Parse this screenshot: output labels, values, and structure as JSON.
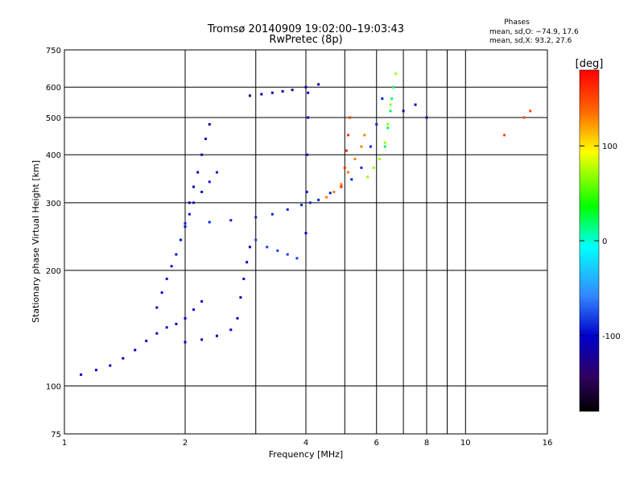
{
  "chart_data": {
    "type": "scatter",
    "title": "Tromsø 20140909 19:02:00–19:03:43",
    "subtitle": "RwPretec (8p)",
    "xlabel": "Frequency [MHz]",
    "ylabel": "Stationary phase Virtual Height [km]",
    "x_scale": "log",
    "y_scale": "log",
    "xlim": [
      1,
      16
    ],
    "ylim": [
      75,
      750
    ],
    "x_ticks": [
      1,
      2,
      4,
      6,
      8,
      10,
      16
    ],
    "x_tick_labels": [
      "1",
      "2",
      "4",
      "6",
      "8",
      "10",
      "16"
    ],
    "x_minor_ticks": [
      3,
      5,
      7,
      9
    ],
    "y_ticks": [
      75,
      100,
      200,
      300,
      400,
      500,
      600,
      750
    ],
    "y_tick_labels": [
      "75",
      "100",
      "200",
      "300",
      "400",
      "500",
      "600",
      "750"
    ],
    "grid": true,
    "info": {
      "heading": "Phases",
      "line1": "mean, sd,O: −74.9, 17.6",
      "line2": "mean, sd,X:  93.2, 27.6"
    },
    "colorbar": {
      "label": "[deg]",
      "range": [
        -180,
        180
      ],
      "ticks": [
        100,
        0,
        -100
      ],
      "tick_labels": [
        "100",
        "0",
        "-100"
      ]
    },
    "traces": [
      {
        "phase": -100,
        "points": [
          [
            1.1,
            107
          ],
          [
            1.2,
            110
          ],
          [
            1.3,
            113
          ],
          [
            1.4,
            118
          ],
          [
            1.5,
            124
          ],
          [
            1.6,
            131
          ],
          [
            1.7,
            137
          ],
          [
            1.8,
            142
          ],
          [
            1.9,
            145
          ],
          [
            2.0,
            150
          ],
          [
            2.1,
            158
          ],
          [
            2.2,
            166
          ]
        ]
      },
      {
        "phase": -95,
        "points": [
          [
            1.7,
            160
          ],
          [
            1.75,
            175
          ],
          [
            1.8,
            190
          ],
          [
            1.85,
            205
          ],
          [
            1.9,
            220
          ],
          [
            1.95,
            240
          ],
          [
            2.0,
            260
          ],
          [
            2.05,
            280
          ],
          [
            2.1,
            300
          ],
          [
            2.2,
            320
          ],
          [
            2.3,
            340
          ],
          [
            2.4,
            360
          ]
        ]
      },
      {
        "phase": -105,
        "points": [
          [
            2.0,
            130
          ],
          [
            2.2,
            132
          ],
          [
            2.4,
            135
          ],
          [
            2.6,
            140
          ],
          [
            2.7,
            150
          ],
          [
            2.75,
            170
          ],
          [
            2.8,
            190
          ],
          [
            2.85,
            210
          ],
          [
            2.9,
            230
          ]
        ]
      },
      {
        "phase": -90,
        "points": [
          [
            2.0,
            265
          ],
          [
            2.3,
            267
          ],
          [
            2.6,
            270
          ],
          [
            3.0,
            275
          ],
          [
            3.3,
            280
          ],
          [
            3.6,
            288
          ],
          [
            3.9,
            296
          ],
          [
            4.1,
            300
          ],
          [
            4.3,
            305
          ],
          [
            4.6,
            318
          ],
          [
            4.9,
            330
          ],
          [
            5.2,
            345
          ],
          [
            5.5,
            370
          ],
          [
            5.8,
            420
          ],
          [
            6.0,
            480
          ],
          [
            6.2,
            560
          ]
        ]
      },
      {
        "phase": -110,
        "points": [
          [
            2.05,
            300
          ],
          [
            2.1,
            330
          ],
          [
            2.15,
            360
          ],
          [
            2.2,
            400
          ],
          [
            2.25,
            440
          ],
          [
            2.3,
            480
          ]
        ]
      },
      {
        "phase": -115,
        "points": [
          [
            2.9,
            570
          ],
          [
            3.1,
            575
          ],
          [
            3.3,
            580
          ],
          [
            3.5,
            585
          ],
          [
            3.7,
            590
          ],
          [
            4.0,
            600
          ],
          [
            4.3,
            610
          ]
        ]
      },
      {
        "phase": -80,
        "points": [
          [
            3.0,
            240
          ],
          [
            3.2,
            230
          ],
          [
            3.4,
            225
          ],
          [
            3.6,
            220
          ],
          [
            3.8,
            215
          ]
        ]
      },
      {
        "phase": -100,
        "points": [
          [
            4.0,
            250
          ],
          [
            4.02,
            320
          ],
          [
            4.03,
            400
          ],
          [
            4.05,
            500
          ],
          [
            4.05,
            580
          ]
        ]
      },
      {
        "phase": 130,
        "points": [
          [
            4.5,
            310
          ],
          [
            4.7,
            320
          ],
          [
            4.9,
            335
          ],
          [
            5.1,
            360
          ],
          [
            5.3,
            390
          ],
          [
            5.5,
            420
          ],
          [
            5.6,
            450
          ]
        ]
      },
      {
        "phase": 160,
        "points": [
          [
            4.9,
            330
          ],
          [
            5.0,
            370
          ],
          [
            5.05,
            410
          ],
          [
            5.1,
            450
          ],
          [
            5.15,
            500
          ]
        ]
      },
      {
        "phase": 70,
        "points": [
          [
            5.7,
            350
          ],
          [
            5.9,
            370
          ],
          [
            6.1,
            390
          ],
          [
            6.3,
            430
          ],
          [
            6.4,
            480
          ],
          [
            6.5,
            540
          ],
          [
            6.6,
            600
          ],
          [
            6.7,
            650
          ]
        ]
      },
      {
        "phase": 20,
        "points": [
          [
            6.3,
            420
          ],
          [
            6.4,
            470
          ],
          [
            6.5,
            520
          ],
          [
            6.55,
            560
          ],
          [
            6.6,
            600
          ]
        ]
      },
      {
        "phase": -120,
        "points": [
          [
            7.0,
            520
          ],
          [
            7.5,
            540
          ],
          [
            8.0,
            500
          ]
        ]
      },
      {
        "phase": 150,
        "points": [
          [
            12.5,
            450
          ],
          [
            14.0,
            500
          ],
          [
            14.5,
            520
          ]
        ]
      }
    ]
  }
}
